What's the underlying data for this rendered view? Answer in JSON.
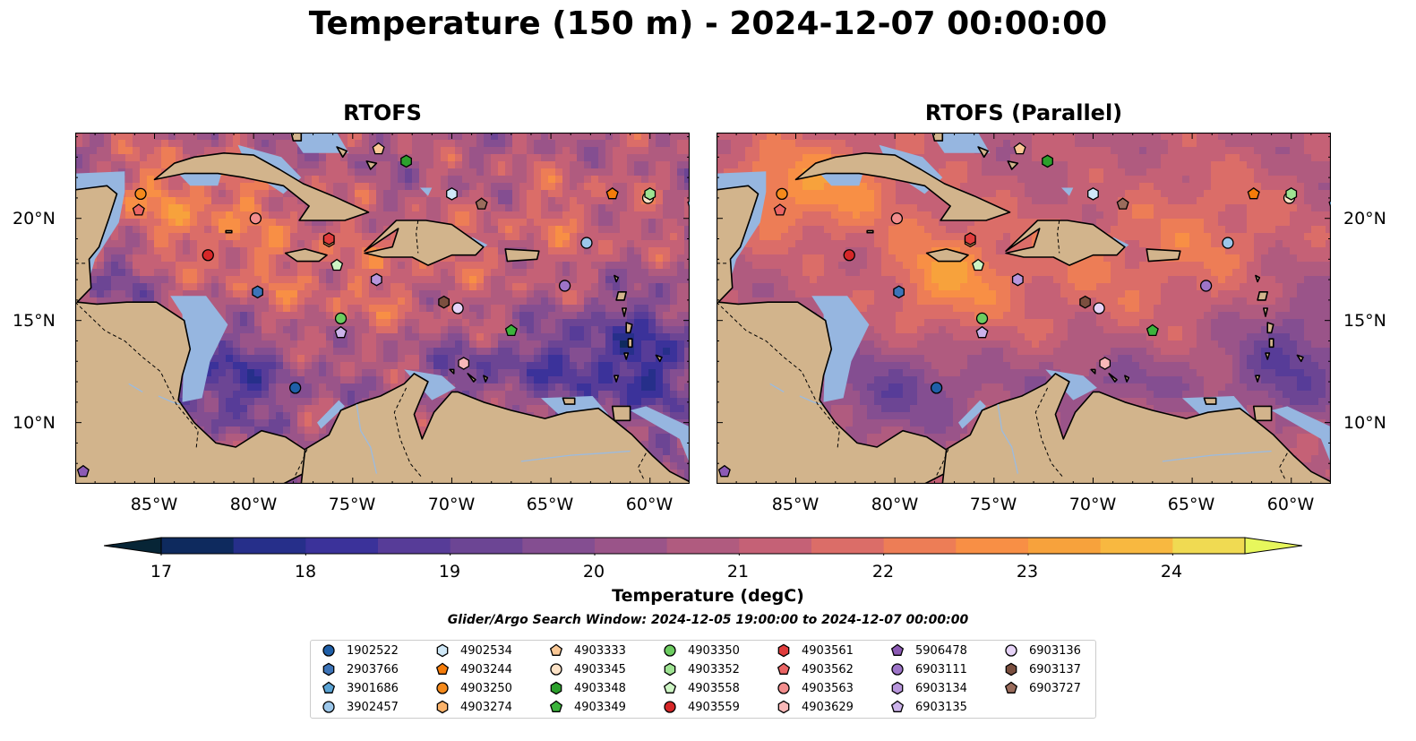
{
  "title": "Temperature (150 m) - 2024-12-07 00:00:00",
  "panels": [
    {
      "title": "RTOFS"
    },
    {
      "title": "RTOFS (Parallel)"
    }
  ],
  "axes": {
    "lat_labels": [
      "20°N",
      "15°N",
      "10°N"
    ],
    "lon_labels": [
      "85°W",
      "80°W",
      "75°W",
      "70°W",
      "65°W",
      "60°W"
    ]
  },
  "colorbar": {
    "label": "Temperature (degC)",
    "min": 17,
    "max": 24.5,
    "ticks": [
      "17",
      "18",
      "19",
      "20",
      "21",
      "22",
      "23",
      "24"
    ],
    "colors": [
      "#072536",
      "#0e2a5e",
      "#262f8a",
      "#3b329a",
      "#573c98",
      "#6c4594",
      "#844e91",
      "#9a5489",
      "#b05b7f",
      "#c56176",
      "#db6d68",
      "#ed7d56",
      "#f88f45",
      "#f7a23c",
      "#f8b840",
      "#f0da52",
      "#e7f75c"
    ]
  },
  "search_window": "Glider/Argo Search Window: 2024-12-05 19:00:00 to 2024-12-07 00:00:00",
  "legend": [
    {
      "id": "1902522",
      "color": "#1f5fa8",
      "marker": "circle"
    },
    {
      "id": "2903766",
      "color": "#3d74b8",
      "marker": "hexagon"
    },
    {
      "id": "3901686",
      "color": "#5aa3d4",
      "marker": "pentagon"
    },
    {
      "id": "3902457",
      "color": "#9cc7ea",
      "marker": "circle"
    },
    {
      "id": "4902534",
      "color": "#cfe8f7",
      "marker": "hexagon"
    },
    {
      "id": "4903244",
      "color": "#f57c0a",
      "marker": "pentagon"
    },
    {
      "id": "4903250",
      "color": "#f58a1c",
      "marker": "circle"
    },
    {
      "id": "4903274",
      "color": "#fbb36b",
      "marker": "hexagon"
    },
    {
      "id": "4903333",
      "color": "#fbc895",
      "marker": "pentagon"
    },
    {
      "id": "4903345",
      "color": "#fde2c6",
      "marker": "circle"
    },
    {
      "id": "4903348",
      "color": "#2ca02c",
      "marker": "hexagon"
    },
    {
      "id": "4903349",
      "color": "#3cb33c",
      "marker": "pentagon"
    },
    {
      "id": "4903350",
      "color": "#6ccc60",
      "marker": "circle"
    },
    {
      "id": "4903352",
      "color": "#9ee392",
      "marker": "hexagon"
    },
    {
      "id": "4903558",
      "color": "#cdf5c4",
      "marker": "pentagon"
    },
    {
      "id": "4903559",
      "color": "#d62728",
      "marker": "circle"
    },
    {
      "id": "4903561",
      "color": "#e03c3c",
      "marker": "hexagon"
    },
    {
      "id": "4903562",
      "color": "#ea6464",
      "marker": "pentagon"
    },
    {
      "id": "4903563",
      "color": "#f28d8d",
      "marker": "circle"
    },
    {
      "id": "4903629",
      "color": "#f9b8b8",
      "marker": "hexagon"
    },
    {
      "id": "5906478",
      "color": "#8c5ab4",
      "marker": "pentagon"
    },
    {
      "id": "6903111",
      "color": "#9d74c8",
      "marker": "circle"
    },
    {
      "id": "6903134",
      "color": "#b896dc",
      "marker": "hexagon"
    },
    {
      "id": "6903135",
      "color": "#ccb3ea",
      "marker": "pentagon"
    },
    {
      "id": "6903136",
      "color": "#e6d3f7",
      "marker": "circle"
    },
    {
      "id": "6903137",
      "color": "#7b4f3f",
      "marker": "hexagon"
    },
    {
      "id": "6903727",
      "color": "#9a6c5c",
      "marker": "pentagon"
    }
  ],
  "chart_data": {
    "type": "map",
    "variable": "Temperature (150 m)",
    "time": "2024-12-07 00:00:00",
    "lon_range": [
      -89,
      -58
    ],
    "lat_range": [
      7,
      24.2
    ],
    "platform_positions": [
      {
        "id": "1902522",
        "lon": -77.9,
        "lat": 11.7
      },
      {
        "id": "2903766",
        "lon": -79.8,
        "lat": 16.4
      },
      {
        "id": "3901686",
        "lon": -57.8,
        "lat": 20.7
      },
      {
        "id": "3902457",
        "lon": -63.2,
        "lat": 18.8
      },
      {
        "id": "4902534",
        "lon": -70.0,
        "lat": 21.2
      },
      {
        "id": "4903244",
        "lon": -61.9,
        "lat": 21.2
      },
      {
        "id": "4903250",
        "lon": -85.7,
        "lat": 21.2
      },
      {
        "id": "4903274",
        "lon": -76.2,
        "lat": 18.9
      },
      {
        "id": "4903333",
        "lon": -73.7,
        "lat": 23.4
      },
      {
        "id": "4903345",
        "lon": -60.1,
        "lat": 21.0
      },
      {
        "id": "4903348",
        "lon": -72.3,
        "lat": 22.8
      },
      {
        "id": "4903349",
        "lon": -67.0,
        "lat": 14.5
      },
      {
        "id": "4903350",
        "lon": -75.6,
        "lat": 15.1
      },
      {
        "id": "4903352",
        "lon": -60.0,
        "lat": 21.2
      },
      {
        "id": "4903558",
        "lon": -75.8,
        "lat": 17.7
      },
      {
        "id": "4903559",
        "lon": -82.3,
        "lat": 18.2
      },
      {
        "id": "4903561",
        "lon": -76.2,
        "lat": 19.0
      },
      {
        "id": "4903562",
        "lon": -85.8,
        "lat": 20.4
      },
      {
        "id": "4903563",
        "lon": -79.9,
        "lat": 20.0
      },
      {
        "id": "4903629",
        "lon": -69.4,
        "lat": 12.9
      },
      {
        "id": "5906478",
        "lon": -88.6,
        "lat": 7.6
      },
      {
        "id": "6903111",
        "lon": -64.3,
        "lat": 16.7
      },
      {
        "id": "6903134",
        "lon": -73.8,
        "lat": 17.0
      },
      {
        "id": "6903135",
        "lon": -75.6,
        "lat": 14.4
      },
      {
        "id": "6903136",
        "lon": -69.7,
        "lat": 15.6
      },
      {
        "id": "6903137",
        "lon": -70.4,
        "lat": 15.9
      },
      {
        "id": "6903727",
        "lon": -68.5,
        "lat": 20.7
      }
    ]
  }
}
